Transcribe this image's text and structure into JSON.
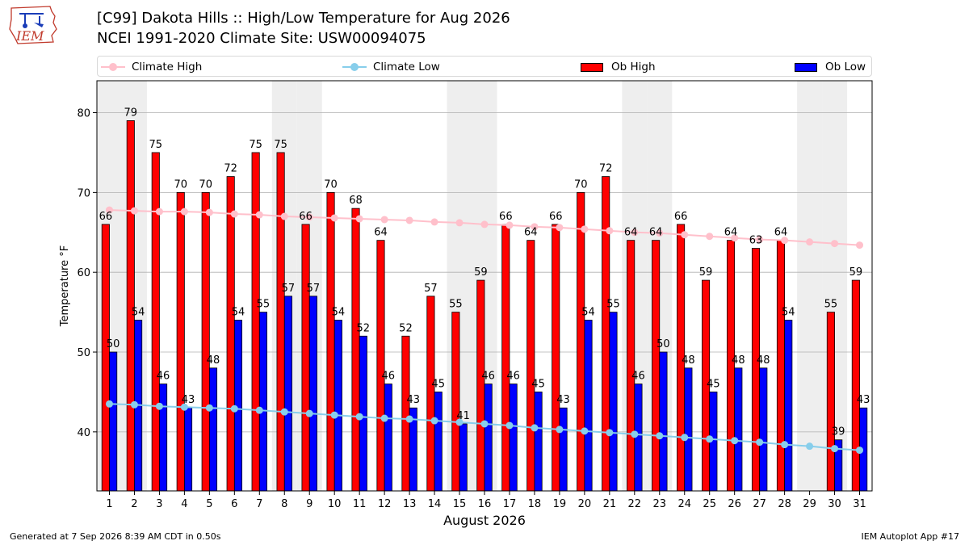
{
  "header": {
    "logo_text": "IEM",
    "title_line1": "[C99] Dakota Hills :: High/Low Temperature for Aug 2026",
    "title_line2": "NCEI 1991-2020 Climate Site: USW00094075"
  },
  "legend": {
    "climate_high": "Climate High",
    "climate_low": "Climate Low",
    "ob_high": "Ob High",
    "ob_low": "Ob Low"
  },
  "colors": {
    "ob_high": "#ff0000",
    "ob_low": "#0000ff",
    "climate_high": "#ffc0cb",
    "climate_low": "#87ceeb",
    "weekend_band": "#eeeeee",
    "grid": "#b0b0b0"
  },
  "chart_data": {
    "type": "bar",
    "xlabel": "August 2026",
    "ylabel": "Temperature °F",
    "ylim": [
      32.6,
      84
    ],
    "yticks": [
      40,
      50,
      60,
      70,
      80
    ],
    "grid": "horizontal",
    "legend_position": "top",
    "categories": [
      "1",
      "2",
      "3",
      "4",
      "5",
      "6",
      "7",
      "8",
      "9",
      "10",
      "11",
      "12",
      "13",
      "14",
      "15",
      "16",
      "17",
      "18",
      "19",
      "20",
      "21",
      "22",
      "23",
      "24",
      "25",
      "26",
      "27",
      "28",
      "29",
      "30",
      "31"
    ],
    "shaded_days": [
      1,
      2,
      8,
      9,
      15,
      16,
      22,
      23,
      29,
      30
    ],
    "series": [
      {
        "name": "Ob High",
        "kind": "bar",
        "values": [
          66,
          79,
          75,
          70,
          70,
          72,
          75,
          75,
          66,
          70,
          68,
          64,
          52,
          57,
          55,
          59,
          66,
          64,
          66,
          70,
          72,
          64,
          64,
          66,
          59,
          64,
          63,
          64,
          null,
          55,
          59
        ]
      },
      {
        "name": "Ob Low",
        "kind": "bar",
        "values": [
          50,
          54,
          46,
          43,
          48,
          54,
          55,
          57,
          57,
          54,
          52,
          46,
          43,
          45,
          41,
          46,
          46,
          45,
          43,
          54,
          55,
          46,
          50,
          48,
          45,
          48,
          48,
          54,
          null,
          39,
          43
        ]
      },
      {
        "name": "Climate High",
        "kind": "line",
        "values": [
          67.8,
          67.7,
          67.6,
          67.6,
          67.5,
          67.3,
          67.2,
          67.0,
          66.9,
          66.8,
          66.7,
          66.6,
          66.5,
          66.3,
          66.2,
          66.0,
          65.9,
          65.7,
          65.6,
          65.4,
          65.2,
          65.0,
          64.9,
          64.7,
          64.5,
          64.3,
          64.1,
          64.0,
          63.8,
          63.6,
          63.4
        ]
      },
      {
        "name": "Climate Low",
        "kind": "line",
        "values": [
          43.5,
          43.4,
          43.2,
          43.1,
          43.0,
          42.9,
          42.7,
          42.5,
          42.3,
          42.1,
          41.9,
          41.7,
          41.6,
          41.4,
          41.2,
          41.0,
          40.8,
          40.5,
          40.3,
          40.1,
          39.9,
          39.7,
          39.5,
          39.3,
          39.1,
          38.9,
          38.7,
          38.4,
          38.2,
          37.9,
          37.7
        ]
      }
    ]
  },
  "footer": {
    "left": "Generated at 7 Sep 2026 8:39 AM CDT in 0.50s",
    "right": "IEM Autoplot App #17"
  }
}
